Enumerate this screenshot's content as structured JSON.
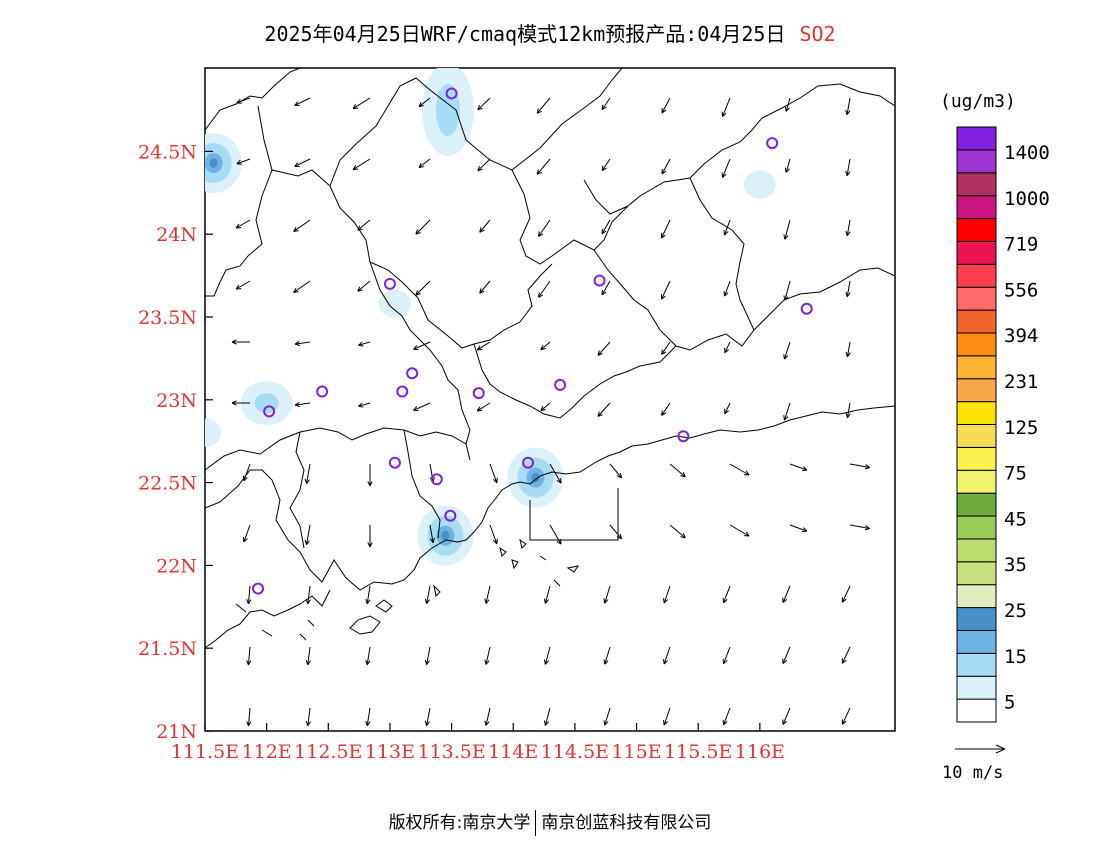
{
  "title": {
    "main": "2025年04月25日WRF/cmaq模式12km预报产品:04月25日",
    "pollutant": "SO2"
  },
  "axes": {
    "lon_labels": [
      "111.5E",
      "112E",
      "112.5E",
      "113E",
      "113.5E",
      "114E",
      "114.5E",
      "115E",
      "115.5E",
      "116E"
    ],
    "lat_labels": [
      "24.5N",
      "24N",
      "23.5N",
      "23N",
      "22.5N",
      "22N",
      "21.5N",
      "21N"
    ],
    "label_color": "#e8322f"
  },
  "legend": {
    "unit": "(ug/m3)",
    "labels": [
      "1400",
      "1000",
      "719",
      "556",
      "394",
      "231",
      "125",
      "75",
      "45",
      "35",
      "25",
      "15",
      "5"
    ],
    "colors": [
      "#ffffff",
      "#dcf0fa",
      "#a6dcf4",
      "#6db4e4",
      "#4a90c8",
      "#e1edc0",
      "#c8e080",
      "#bcdc70",
      "#96cc58",
      "#6cac3c",
      "#f0f46c",
      "#faf04e",
      "#f4dc54",
      "#fce400",
      "#f8a84c",
      "#fcb434",
      "#fc8c14",
      "#f0642c",
      "#ff6a6a",
      "#ff3c50",
      "#ec1450",
      "#ff0000",
      "#cc1480",
      "#b03060",
      "#9c34d0",
      "#8020e0"
    ]
  },
  "wind_reference": {
    "label": "10 m/s"
  },
  "stations": [
    {
      "lon": 113.5,
      "lat": 24.85
    },
    {
      "lon": 116.1,
      "lat": 24.55
    },
    {
      "lon": 113.0,
      "lat": 23.7
    },
    {
      "lon": 114.7,
      "lat": 23.72
    },
    {
      "lon": 116.38,
      "lat": 23.55
    },
    {
      "lon": 112.45,
      "lat": 23.05
    },
    {
      "lon": 113.1,
      "lat": 23.05
    },
    {
      "lon": 113.18,
      "lat": 23.16
    },
    {
      "lon": 113.72,
      "lat": 23.04
    },
    {
      "lon": 114.38,
      "lat": 23.09
    },
    {
      "lon": 112.02,
      "lat": 22.93
    },
    {
      "lon": 115.38,
      "lat": 22.78
    },
    {
      "lon": 113.04,
      "lat": 22.62
    },
    {
      "lon": 113.38,
      "lat": 22.52
    },
    {
      "lon": 114.12,
      "lat": 22.62
    },
    {
      "lon": 113.49,
      "lat": 22.3
    },
    {
      "lon": 111.93,
      "lat": 21.86
    }
  ],
  "concentration_patches": [
    {
      "lon": 111.57,
      "lat": 24.43,
      "level": "25"
    },
    {
      "lon": 113.47,
      "lat": 24.75,
      "level": "15"
    },
    {
      "lon": 112.0,
      "lat": 22.98,
      "level": "15"
    },
    {
      "lon": 113.45,
      "lat": 22.18,
      "level": "25"
    },
    {
      "lon": 114.18,
      "lat": 22.53,
      "level": "25"
    },
    {
      "lon": 116.0,
      "lat": 24.3,
      "level": "5"
    },
    {
      "lon": 113.04,
      "lat": 23.58,
      "level": "5"
    },
    {
      "lon": 111.5,
      "lat": 22.8,
      "level": "5"
    }
  ],
  "credit": {
    "left": "版权所有:南京大学",
    "right": "南京创蓝科技有限公司"
  }
}
